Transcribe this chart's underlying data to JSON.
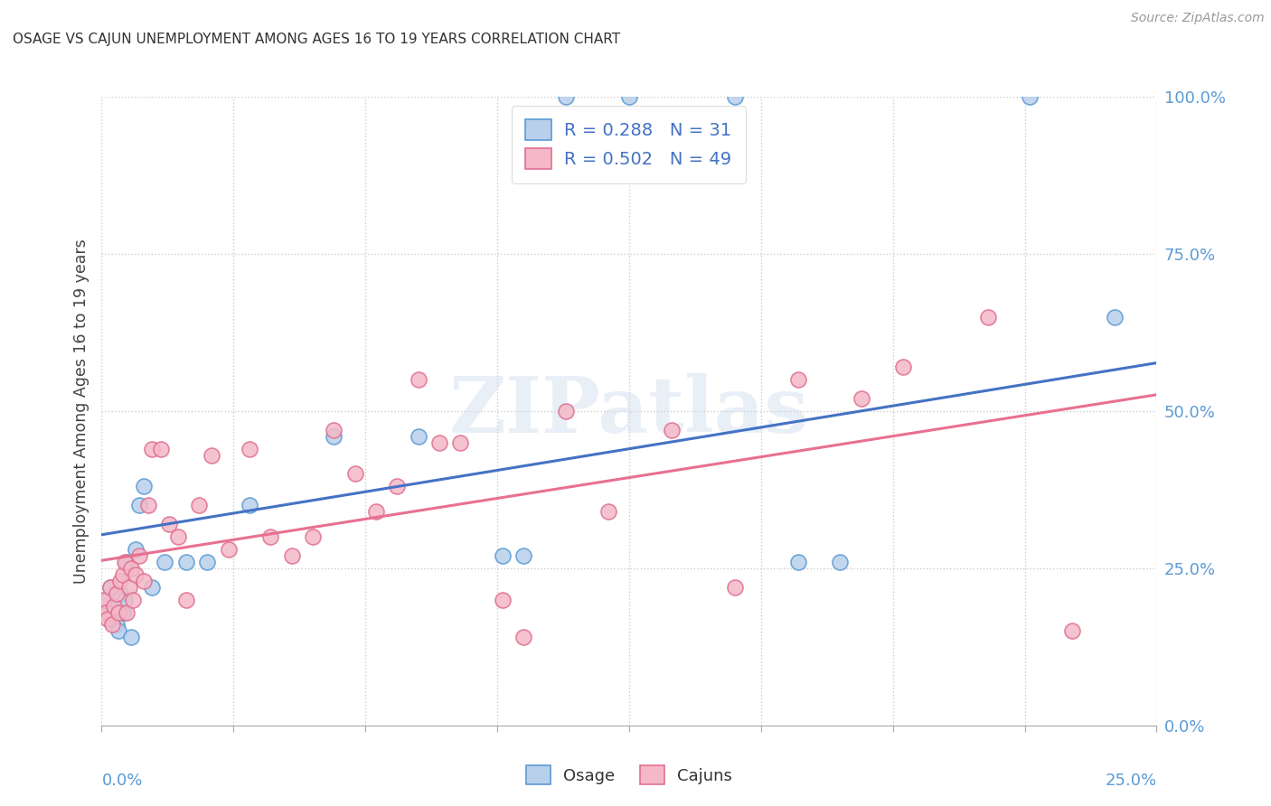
{
  "title": "OSAGE VS CAJUN UNEMPLOYMENT AMONG AGES 16 TO 19 YEARS CORRELATION CHART",
  "source": "Source: ZipAtlas.com",
  "ylabel": "Unemployment Among Ages 16 to 19 years",
  "ytick_labels": [
    "0.0%",
    "25.0%",
    "50.0%",
    "75.0%",
    "100.0%"
  ],
  "ytick_values": [
    0,
    25,
    50,
    75,
    100
  ],
  "xmin": 0,
  "xmax": 25,
  "ymin": 0,
  "ymax": 100,
  "osage_face_color": "#b8d0ea",
  "osage_edge_color": "#5b9bd5",
  "cajun_face_color": "#f4b8c8",
  "cajun_edge_color": "#e07090",
  "osage_line_color": "#4472c4",
  "cajun_line_color": "#e87090",
  "legend_text_color": "#4472c4",
  "axis_label_color": "#5b9bd5",
  "watermark": "ZIPatlas",
  "background_color": "#ffffff",
  "grid_color": "#cccccc",
  "osage_R": 0.288,
  "osage_N": 31,
  "cajun_R": 0.502,
  "cajun_N": 49,
  "osage_x": [
    0.1,
    0.15,
    0.2,
    0.25,
    0.3,
    0.35,
    0.4,
    0.45,
    0.5,
    0.55,
    0.6,
    0.7,
    0.8,
    0.9,
    1.0,
    1.2,
    1.5,
    2.0,
    2.5,
    3.5,
    5.5,
    7.5,
    9.5,
    10.0,
    11.0,
    12.5,
    15.0,
    16.5,
    17.5,
    22.0,
    24.0
  ],
  "osage_y": [
    20,
    18,
    22,
    17,
    19,
    16,
    15,
    21,
    18,
    20,
    26,
    14,
    28,
    35,
    38,
    22,
    26,
    26,
    26,
    35,
    46,
    46,
    27,
    27,
    100,
    100,
    100,
    26,
    26,
    100,
    65
  ],
  "cajun_x": [
    0.05,
    0.1,
    0.15,
    0.2,
    0.25,
    0.3,
    0.35,
    0.4,
    0.45,
    0.5,
    0.55,
    0.6,
    0.65,
    0.7,
    0.75,
    0.8,
    0.9,
    1.0,
    1.1,
    1.2,
    1.4,
    1.6,
    1.8,
    2.0,
    2.3,
    2.6,
    3.0,
    3.5,
    4.0,
    4.5,
    5.0,
    5.5,
    6.0,
    6.5,
    7.0,
    7.5,
    8.0,
    8.5,
    9.5,
    10.0,
    11.0,
    12.0,
    13.5,
    15.0,
    16.5,
    18.0,
    19.0,
    21.0,
    23.0
  ],
  "cajun_y": [
    20,
    18,
    17,
    22,
    16,
    19,
    21,
    18,
    23,
    24,
    26,
    18,
    22,
    25,
    20,
    24,
    27,
    23,
    35,
    44,
    44,
    32,
    30,
    20,
    35,
    43,
    28,
    44,
    30,
    27,
    30,
    47,
    40,
    34,
    38,
    55,
    45,
    45,
    20,
    14,
    50,
    34,
    47,
    22,
    55,
    52,
    57,
    65,
    15
  ]
}
